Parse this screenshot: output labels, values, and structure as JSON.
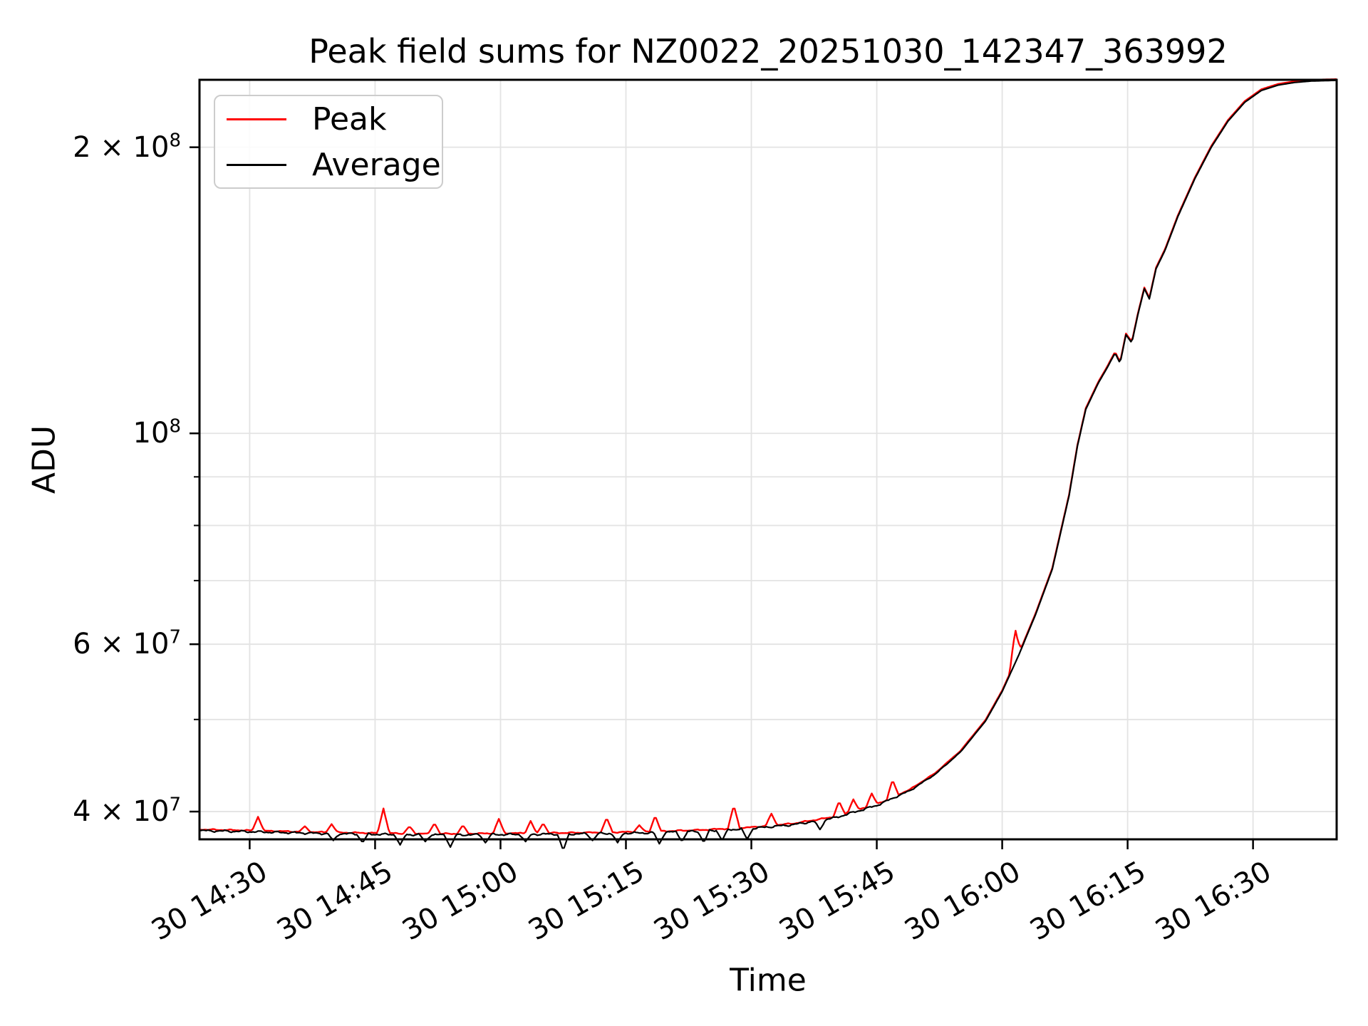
{
  "figure": {
    "background": "#ffffff"
  },
  "chart_data": {
    "type": "line",
    "title": "Peak field sums for NZ0022_20251030_142347_363992",
    "xlabel": "Time",
    "ylabel": "ADU",
    "yscale": "log",
    "grid": true,
    "legend_position": "upper left",
    "x_axis_unit": "minutes since 00:00 on day 30",
    "xlim": [
      864,
      1000
    ],
    "ylim": [
      37400000,
      235500000
    ],
    "x_ticks": [
      {
        "minute": 870,
        "label": "30 14:30"
      },
      {
        "minute": 885,
        "label": "30 14:45"
      },
      {
        "minute": 900,
        "label": "30 15:00"
      },
      {
        "minute": 915,
        "label": "30 15:15"
      },
      {
        "minute": 930,
        "label": "30 15:30"
      },
      {
        "minute": 945,
        "label": "30 15:45"
      },
      {
        "minute": 960,
        "label": "30 16:00"
      },
      {
        "minute": 975,
        "label": "30 16:15"
      },
      {
        "minute": 990,
        "label": "30 16:30"
      }
    ],
    "y_ticks": [
      {
        "value": 200000000,
        "mantissa": "2 × 10",
        "exponent": "8"
      },
      {
        "value": 100000000,
        "mantissa": "10",
        "exponent": "8"
      },
      {
        "value": 60000000,
        "mantissa": "6 × 10",
        "exponent": "7"
      },
      {
        "value": 40000000,
        "mantissa": "4 × 10",
        "exponent": "7"
      }
    ],
    "y_gridlines": [
      40000000,
      50000000,
      60000000,
      70000000,
      80000000,
      90000000,
      100000000,
      200000000
    ],
    "y_minor_ticks": [
      50000000,
      70000000,
      80000000,
      90000000
    ],
    "series": [
      {
        "name": "Peak",
        "color": "#ff0000"
      },
      {
        "name": "Average",
        "color": "#000000"
      }
    ],
    "base_curve_minute_value": [
      [
        864,
        38200000
      ],
      [
        870,
        38100000
      ],
      [
        878,
        37950000
      ],
      [
        886,
        37850000
      ],
      [
        894,
        37800000
      ],
      [
        902,
        37850000
      ],
      [
        910,
        37900000
      ],
      [
        918,
        38000000
      ],
      [
        924,
        38150000
      ],
      [
        930,
        38400000
      ],
      [
        935,
        38750000
      ],
      [
        940,
        39400000
      ],
      [
        945,
        40600000
      ],
      [
        949,
        42100000
      ],
      [
        952,
        43800000
      ],
      [
        955,
        46200000
      ],
      [
        958,
        49800000
      ],
      [
        960,
        53500000
      ],
      [
        962,
        58500000
      ],
      [
        964,
        64500000
      ],
      [
        966,
        72000000
      ],
      [
        968,
        86000000
      ],
      [
        969,
        97000000
      ],
      [
        970,
        106000000
      ],
      [
        971.5,
        113000000
      ],
      [
        972.5,
        117000000
      ],
      [
        973.5,
        121500000
      ],
      [
        974.1,
        118500000
      ],
      [
        974.8,
        127000000
      ],
      [
        975.5,
        124500000
      ],
      [
        976.2,
        133000000
      ],
      [
        977,
        142000000
      ],
      [
        977.6,
        138500000
      ],
      [
        978.4,
        149000000
      ],
      [
        979.5,
        156000000
      ],
      [
        981,
        169000000
      ],
      [
        983,
        185000000
      ],
      [
        985,
        200000000
      ],
      [
        987,
        213000000
      ],
      [
        989,
        223000000
      ],
      [
        991,
        229500000
      ],
      [
        993,
        232500000
      ],
      [
        995,
        234000000
      ],
      [
        997,
        234800000
      ],
      [
        1000,
        235200000
      ]
    ],
    "peak_spikes_minute_value": [
      [
        871.0,
        39500000
      ],
      [
        876.6,
        38600000
      ],
      [
        879.8,
        38800000
      ],
      [
        886.0,
        40300000
      ],
      [
        889.1,
        38600000
      ],
      [
        892.1,
        38900000
      ],
      [
        895.5,
        38700000
      ],
      [
        899.8,
        39300000
      ],
      [
        903.6,
        39100000
      ],
      [
        905.1,
        38900000
      ],
      [
        912.7,
        39400000
      ],
      [
        916.6,
        38700000
      ],
      [
        918.5,
        39600000
      ],
      [
        927.9,
        40600000
      ],
      [
        932.4,
        39800000
      ],
      [
        940.5,
        41000000
      ],
      [
        942.2,
        41200000
      ],
      [
        944.4,
        41800000
      ],
      [
        946.9,
        43200000
      ],
      [
        961.6,
        62000000
      ]
    ],
    "average_dips_minute_value": [
      [
        880.0,
        37300000
      ],
      [
        883.5,
        37100000
      ],
      [
        888.0,
        36900000
      ],
      [
        891.0,
        37200000
      ],
      [
        894.0,
        36700000
      ],
      [
        898.2,
        37100000
      ],
      [
        903.0,
        37200000
      ],
      [
        907.5,
        36400000
      ],
      [
        911.0,
        37300000
      ],
      [
        914.0,
        37100000
      ],
      [
        919.0,
        37000000
      ],
      [
        921.7,
        37200000
      ],
      [
        924.3,
        37100000
      ],
      [
        926.5,
        37300000
      ],
      [
        929.5,
        37400000
      ],
      [
        938.2,
        38300000
      ]
    ],
    "noise": {
      "relative_amplitude": 0.0032,
      "fade_start_minute": 944,
      "fade_end_minute": 958
    }
  }
}
